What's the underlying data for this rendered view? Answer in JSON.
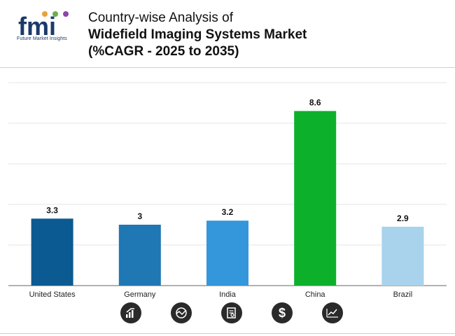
{
  "header": {
    "logo_text": "fmi",
    "logo_tagline": "Future Market Insights",
    "title_line1": "Country-wise Analysis of",
    "title_line2": "Widefield Imaging Systems Market",
    "title_line3": "(%CAGR - 2025 to 2035)"
  },
  "chart_data": {
    "type": "bar",
    "categories": [
      "United States",
      "Germany",
      "India",
      "China",
      "Brazil"
    ],
    "values": [
      3.3,
      3,
      3.2,
      8.6,
      2.9
    ],
    "value_labels": [
      "3.3",
      "3",
      "3.2",
      "8.6",
      "2.9"
    ],
    "colors": [
      "#0b5a91",
      "#1f77b4",
      "#3497db",
      "#0db02b",
      "#a9d2ec"
    ],
    "title": "",
    "xlabel": "",
    "ylabel": "",
    "ylim": [
      0,
      10
    ],
    "grid": true,
    "legend": "none"
  },
  "footer_icons": [
    "growth-chart-icon",
    "globe-chart-icon",
    "report-search-icon",
    "dollar-icon",
    "trend-line-icon"
  ]
}
